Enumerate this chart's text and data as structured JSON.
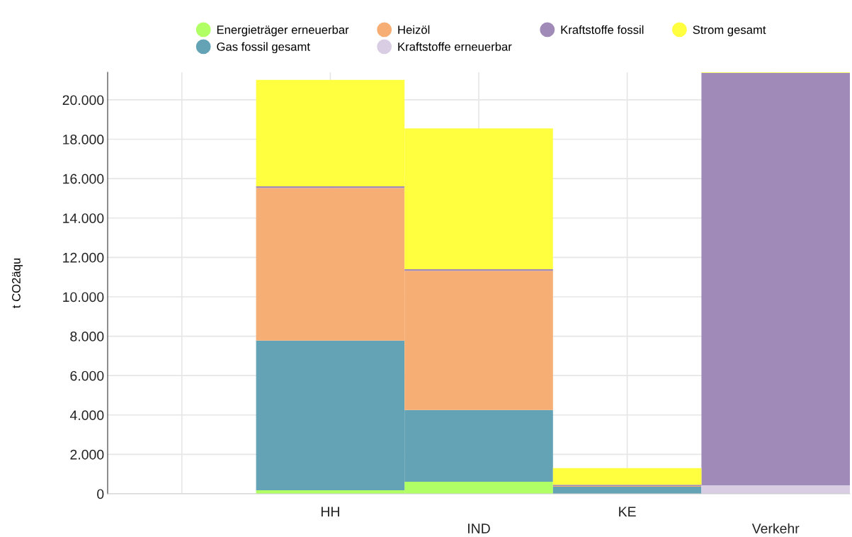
{
  "chart_data": {
    "type": "bar",
    "stacked": true,
    "ylabel": "t CO2äqu",
    "categories": [
      null,
      "HH",
      "IND",
      "KE",
      "Verkehr"
    ],
    "series": [
      {
        "name": "Energieträger erneuerbar",
        "color": "#b0ff64",
        "values": [
          0,
          180,
          610,
          0,
          0
        ]
      },
      {
        "name": "Gas fossil gesamt",
        "color": "#63a3b5",
        "values": [
          0,
          7600,
          3640,
          360,
          0
        ]
      },
      {
        "name": "Heizöl",
        "color": "#f6ae74",
        "values": [
          0,
          7750,
          7070,
          40,
          0
        ]
      },
      {
        "name": "Kraftstoffe erneuerbar",
        "color": "#d9cde3",
        "values": [
          0,
          0,
          0,
          0,
          430
        ]
      },
      {
        "name": "Kraftstoffe fossil",
        "color": "#a08ab8",
        "values": [
          0,
          80,
          80,
          60,
          20940
        ]
      },
      {
        "name": "Strom gesamt",
        "color": "#ffff40",
        "values": [
          0,
          5400,
          7150,
          840,
          80
        ]
      }
    ],
    "ylim": [
      0,
      21400
    ],
    "yticks": [
      0,
      {
        "value": 2000,
        "label": "2.000"
      },
      {
        "value": 4000,
        "label": "4.000"
      },
      {
        "value": 6000,
        "label": "6.000"
      },
      {
        "value": 8000,
        "label": "8.000"
      },
      {
        "value": 10000,
        "label": "10.000"
      },
      {
        "value": 12000,
        "label": "12.000"
      },
      {
        "value": 14000,
        "label": "14.000"
      },
      {
        "value": 16000,
        "label": "16.000"
      },
      {
        "value": 18000,
        "label": "18.000"
      },
      {
        "value": 20000,
        "label": "20.000"
      }
    ],
    "grid": true,
    "legend": "top",
    "marker": "circle"
  }
}
